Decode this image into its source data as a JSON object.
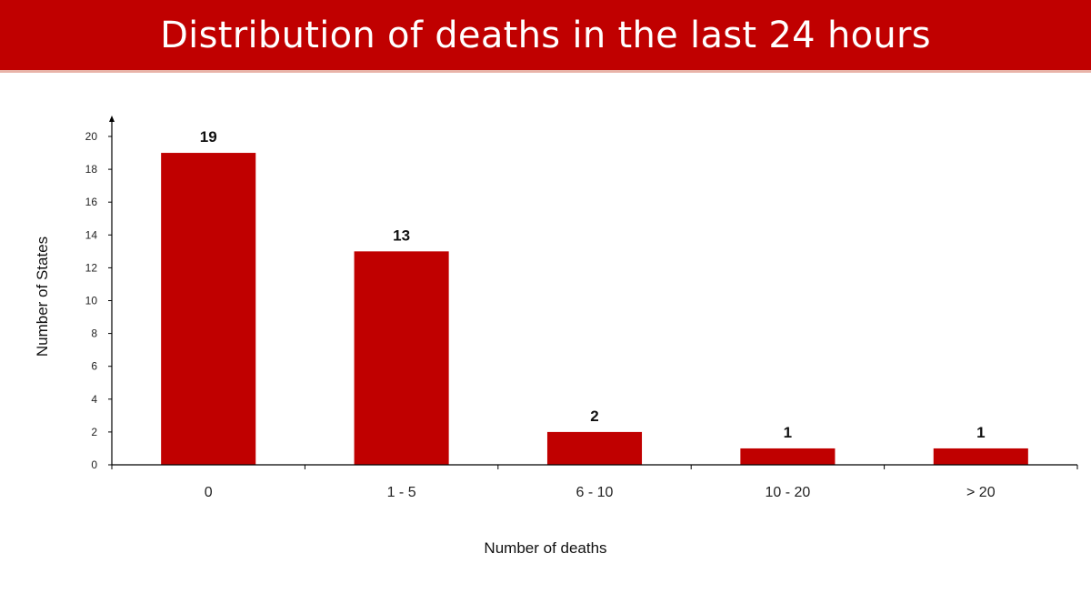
{
  "colors": {
    "accent": "#c00000",
    "bar": "#c00000",
    "title_text": "#ffffff",
    "axis": "#000000"
  },
  "chart_data": {
    "type": "bar",
    "title": "Distribution of deaths in the last 24 hours",
    "xlabel": "Number of deaths",
    "ylabel": "Number of States",
    "categories": [
      "0",
      "1 - 5",
      "6 - 10",
      "10 - 20",
      "> 20"
    ],
    "values": [
      19,
      13,
      2,
      1,
      1
    ],
    "ylim": [
      0,
      20
    ],
    "yticks": [
      0,
      2,
      4,
      6,
      8,
      10,
      12,
      14,
      16,
      18,
      20
    ],
    "data_labels": true,
    "grid": false,
    "legend": "none"
  }
}
